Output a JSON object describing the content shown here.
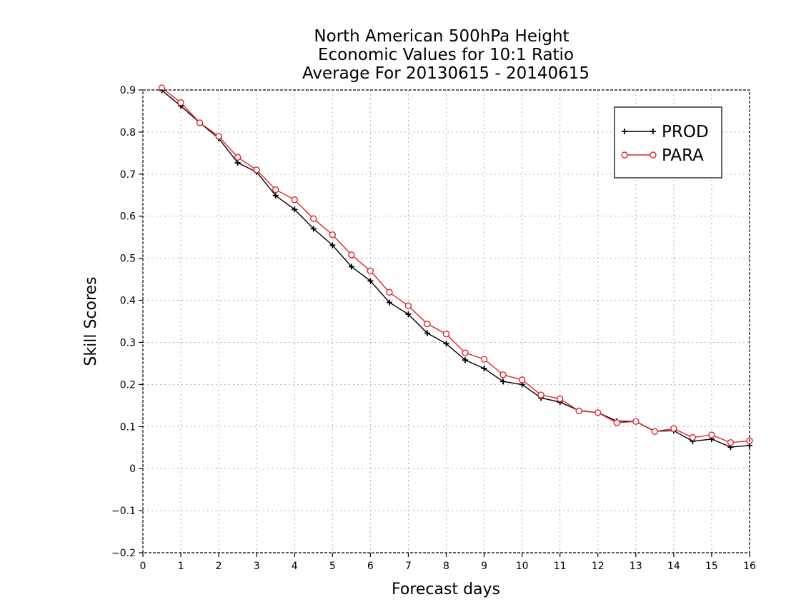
{
  "chart_data": {
    "type": "line",
    "title_lines": [
      "North American 500hPa Height",
      "Economic Values for 10:1 Ratio",
      "Average For 20130615 - 20140615"
    ],
    "xlabel": "Forecast days",
    "ylabel": "Skill Scores",
    "xlim": [
      0,
      16
    ],
    "ylim": [
      -0.2,
      0.9
    ],
    "x_ticks": [
      0,
      1,
      2,
      3,
      4,
      5,
      6,
      7,
      8,
      9,
      10,
      11,
      12,
      13,
      14,
      15,
      16
    ],
    "x_tick_labels": [
      "0",
      "1",
      "2",
      "3",
      "4",
      "5",
      "6",
      "7",
      "8",
      "9",
      "10",
      "11",
      "12",
      "13",
      "14",
      "15",
      "16"
    ],
    "y_ticks": [
      -0.2,
      -0.1,
      0,
      0.1,
      0.2,
      0.3,
      0.4,
      0.5,
      0.6,
      0.7,
      0.8,
      0.9
    ],
    "y_tick_labels": [
      "−0.2",
      "−0.1",
      "0",
      "0.1",
      "0.2",
      "0.3",
      "0.4",
      "0.5",
      "0.6",
      "0.7",
      "0.8",
      "0.9"
    ],
    "grid": true,
    "legend_position": "top-right",
    "x": [
      0.5,
      1,
      1.5,
      2,
      2.5,
      3,
      3.5,
      4,
      4.5,
      5,
      5.5,
      6,
      6.5,
      7,
      7.5,
      8,
      8.5,
      9,
      9.5,
      10,
      10.5,
      11,
      11.5,
      12,
      12.5,
      13,
      13.5,
      14,
      14.5,
      15,
      15.5,
      16
    ],
    "series": [
      {
        "name": "PROD",
        "color": "#000000",
        "marker": "plus",
        "values": [
          0.899,
          0.862,
          0.822,
          0.785,
          0.727,
          0.705,
          0.649,
          0.616,
          0.57,
          0.531,
          0.48,
          0.446,
          0.395,
          0.367,
          0.322,
          0.297,
          0.258,
          0.238,
          0.207,
          0.2,
          0.168,
          0.158,
          0.138,
          0.133,
          0.113,
          0.112,
          0.089,
          0.09,
          0.065,
          0.07,
          0.051,
          0.055
        ]
      },
      {
        "name": "PARA",
        "color": "#e0262b",
        "marker": "circle",
        "values": [
          0.905,
          0.87,
          0.822,
          0.79,
          0.74,
          0.71,
          0.663,
          0.639,
          0.594,
          0.556,
          0.508,
          0.47,
          0.419,
          0.387,
          0.344,
          0.32,
          0.275,
          0.26,
          0.223,
          0.211,
          0.175,
          0.166,
          0.137,
          0.133,
          0.109,
          0.112,
          0.088,
          0.095,
          0.074,
          0.08,
          0.062,
          0.066
        ]
      }
    ]
  }
}
